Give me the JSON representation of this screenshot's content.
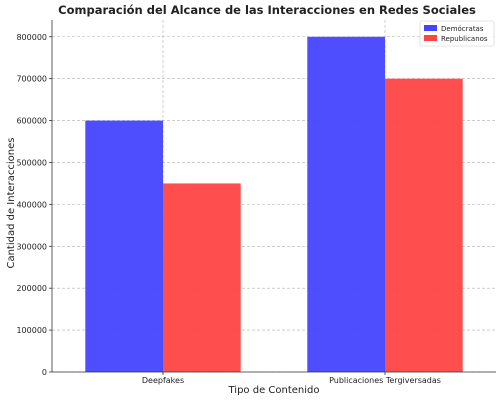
{
  "chart_data": {
    "type": "bar",
    "title": "Comparación del Alcance de las Interacciones en Redes Sociales",
    "xlabel": "Tipo de Contenido",
    "ylabel": "Cantidad de Interacciones",
    "categories": [
      "Deepfakes",
      "Publicaciones Tergiversadas"
    ],
    "series": [
      {
        "name": "Demócratas",
        "values": [
          600000,
          800000
        ],
        "color": "#4444ff"
      },
      {
        "name": "Republicanos",
        "values": [
          450000,
          700000
        ],
        "color": "#ff4444"
      }
    ],
    "ylim": [
      0,
      840000
    ],
    "yticks": [
      0,
      100000,
      200000,
      300000,
      400000,
      500000,
      600000,
      700000,
      800000
    ],
    "grid": true,
    "legend_position": "top-right"
  }
}
